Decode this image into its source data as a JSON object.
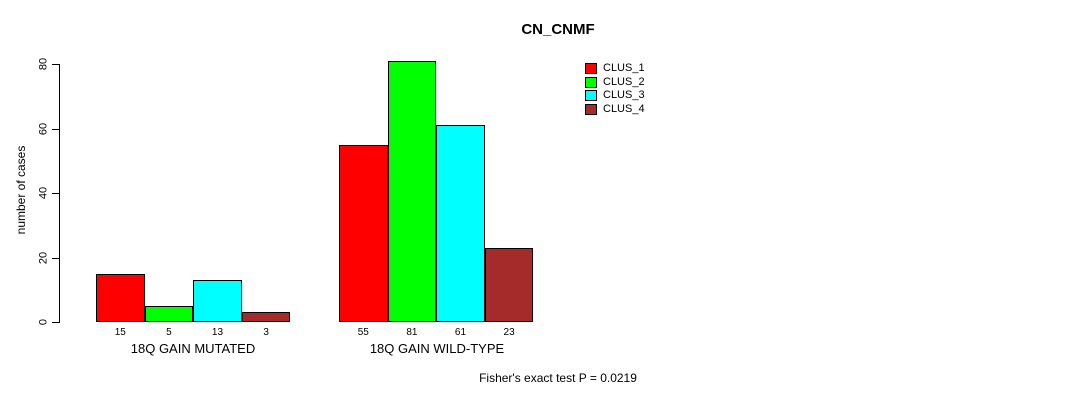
{
  "chart_data": {
    "type": "bar",
    "title": "CN_CNMF",
    "ylabel": "number of cases",
    "ylim": [
      0,
      80
    ],
    "yticks": [
      0,
      20,
      40,
      60,
      80
    ],
    "grid": false,
    "legend_position": "top-right",
    "categories": [
      "18Q GAIN MUTATED",
      "18Q GAIN WILD-TYPE"
    ],
    "series": [
      {
        "name": "CLUS_1",
        "color": "#FF0000",
        "values": [
          15,
          55
        ]
      },
      {
        "name": "CLUS_2",
        "color": "#00FF00",
        "values": [
          5,
          81
        ]
      },
      {
        "name": "CLUS_3",
        "color": "#00FFFF",
        "values": [
          13,
          61
        ]
      },
      {
        "name": "CLUS_4",
        "color": "#A52A2A",
        "values": [
          3,
          23
        ]
      }
    ],
    "bar_value_labels": [
      [
        15,
        5,
        13,
        3
      ],
      [
        55,
        81,
        61,
        23
      ]
    ],
    "annotation": "Fisher's exact test P = 0.0219"
  },
  "colors": {
    "background": "#FFFFFF",
    "axis": "#000000",
    "text": "#000000",
    "bar_border": "#000000"
  }
}
